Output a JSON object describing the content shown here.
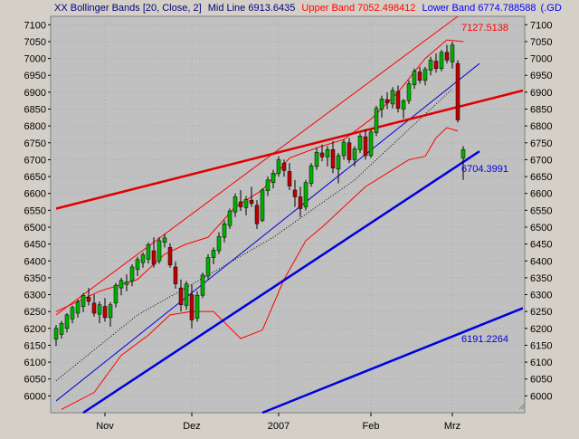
{
  "header": {
    "prefix": "XX Bollinger Bands [20, Close, 2]",
    "mid": "Mid Line 6913.6435",
    "upper": "Upper Band 7052.498412",
    "lower": "Lower Band 6774.788588",
    "tail": "(.GD"
  },
  "chart_data": {
    "type": "candlestick",
    "ylim": [
      5950,
      7125
    ],
    "y_ticks": [
      6000,
      6050,
      6100,
      6150,
      6200,
      6250,
      6300,
      6350,
      6400,
      6450,
      6500,
      6550,
      6600,
      6650,
      6700,
      6750,
      6800,
      6850,
      6900,
      6950,
      7000,
      7050,
      7100
    ],
    "x_labels": [
      "Nov",
      "Dez",
      "2007",
      "Feb",
      "Mrz"
    ],
    "annotations": [
      "7127.5138",
      "6704.3991",
      "6191.2264"
    ],
    "colors": {
      "up": "#00b000",
      "down": "#c00000",
      "band": "#ff0000",
      "trend_red": "#e00000",
      "trend_blue": "#0000dd",
      "background": "#c0c0c0"
    },
    "candles": [
      {
        "o": 6168,
        "h": 6210,
        "l": 6148,
        "c": 6200
      },
      {
        "o": 6182,
        "h": 6222,
        "l": 6170,
        "c": 6215
      },
      {
        "o": 6200,
        "h": 6245,
        "l": 6188,
        "c": 6240
      },
      {
        "o": 6228,
        "h": 6268,
        "l": 6215,
        "c": 6262
      },
      {
        "o": 6245,
        "h": 6285,
        "l": 6232,
        "c": 6278
      },
      {
        "o": 6265,
        "h": 6305,
        "l": 6248,
        "c": 6298
      },
      {
        "o": 6292,
        "h": 6320,
        "l": 6268,
        "c": 6280
      },
      {
        "o": 6275,
        "h": 6300,
        "l": 6235,
        "c": 6245
      },
      {
        "o": 6242,
        "h": 6280,
        "l": 6215,
        "c": 6270
      },
      {
        "o": 6265,
        "h": 6290,
        "l": 6220,
        "c": 6232
      },
      {
        "o": 6232,
        "h": 6278,
        "l": 6205,
        "c": 6270
      },
      {
        "o": 6275,
        "h": 6335,
        "l": 6262,
        "c": 6328
      },
      {
        "o": 6320,
        "h": 6350,
        "l": 6298,
        "c": 6342
      },
      {
        "o": 6330,
        "h": 6360,
        "l": 6310,
        "c": 6338
      },
      {
        "o": 6340,
        "h": 6390,
        "l": 6325,
        "c": 6382
      },
      {
        "o": 6375,
        "h": 6412,
        "l": 6355,
        "c": 6404
      },
      {
        "o": 6395,
        "h": 6425,
        "l": 6380,
        "c": 6418
      },
      {
        "o": 6405,
        "h": 6455,
        "l": 6392,
        "c": 6448
      },
      {
        "o": 6430,
        "h": 6470,
        "l": 6380,
        "c": 6390
      },
      {
        "o": 6400,
        "h": 6470,
        "l": 6392,
        "c": 6460
      },
      {
        "o": 6455,
        "h": 6480,
        "l": 6440,
        "c": 6468
      },
      {
        "o": 6440,
        "h": 6452,
        "l": 6380,
        "c": 6388
      },
      {
        "o": 6382,
        "h": 6398,
        "l": 6318,
        "c": 6332
      },
      {
        "o": 6320,
        "h": 6345,
        "l": 6250,
        "c": 6270
      },
      {
        "o": 6268,
        "h": 6340,
        "l": 6255,
        "c": 6332
      },
      {
        "o": 6300,
        "h": 6330,
        "l": 6200,
        "c": 6225
      },
      {
        "o": 6230,
        "h": 6310,
        "l": 6220,
        "c": 6298
      },
      {
        "o": 6298,
        "h": 6365,
        "l": 6290,
        "c": 6358
      },
      {
        "o": 6355,
        "h": 6420,
        "l": 6345,
        "c": 6410
      },
      {
        "o": 6410,
        "h": 6440,
        "l": 6390,
        "c": 6432
      },
      {
        "o": 6430,
        "h": 6485,
        "l": 6420,
        "c": 6472
      },
      {
        "o": 6470,
        "h": 6520,
        "l": 6455,
        "c": 6510
      },
      {
        "o": 6505,
        "h": 6555,
        "l": 6495,
        "c": 6548
      },
      {
        "o": 6545,
        "h": 6600,
        "l": 6530,
        "c": 6590
      },
      {
        "o": 6575,
        "h": 6610,
        "l": 6548,
        "c": 6560
      },
      {
        "o": 6558,
        "h": 6592,
        "l": 6535,
        "c": 6582
      },
      {
        "o": 6580,
        "h": 6620,
        "l": 6560,
        "c": 6570
      },
      {
        "o": 6565,
        "h": 6580,
        "l": 6495,
        "c": 6510
      },
      {
        "o": 6520,
        "h": 6615,
        "l": 6515,
        "c": 6610
      },
      {
        "o": 6608,
        "h": 6650,
        "l": 6592,
        "c": 6640
      },
      {
        "o": 6632,
        "h": 6670,
        "l": 6615,
        "c": 6660
      },
      {
        "o": 6660,
        "h": 6710,
        "l": 6650,
        "c": 6700
      },
      {
        "o": 6690,
        "h": 6700,
        "l": 6650,
        "c": 6668
      },
      {
        "o": 6665,
        "h": 6690,
        "l": 6610,
        "c": 6622
      },
      {
        "o": 6610,
        "h": 6640,
        "l": 6560,
        "c": 6590
      },
      {
        "o": 6590,
        "h": 6620,
        "l": 6530,
        "c": 6555
      },
      {
        "o": 6560,
        "h": 6640,
        "l": 6550,
        "c": 6632
      },
      {
        "o": 6630,
        "h": 6690,
        "l": 6620,
        "c": 6682
      },
      {
        "o": 6680,
        "h": 6735,
        "l": 6670,
        "c": 6722
      },
      {
        "o": 6720,
        "h": 6745,
        "l": 6695,
        "c": 6708
      },
      {
        "o": 6708,
        "h": 6740,
        "l": 6680,
        "c": 6730
      },
      {
        "o": 6730,
        "h": 6755,
        "l": 6660,
        "c": 6675
      },
      {
        "o": 6672,
        "h": 6720,
        "l": 6630,
        "c": 6712
      },
      {
        "o": 6712,
        "h": 6760,
        "l": 6700,
        "c": 6752
      },
      {
        "o": 6750,
        "h": 6765,
        "l": 6690,
        "c": 6700
      },
      {
        "o": 6700,
        "h": 6740,
        "l": 6680,
        "c": 6732
      },
      {
        "o": 6730,
        "h": 6778,
        "l": 6720,
        "c": 6770
      },
      {
        "o": 6768,
        "h": 6790,
        "l": 6700,
        "c": 6712
      },
      {
        "o": 6712,
        "h": 6790,
        "l": 6705,
        "c": 6782
      },
      {
        "o": 6780,
        "h": 6860,
        "l": 6770,
        "c": 6852
      },
      {
        "o": 6850,
        "h": 6890,
        "l": 6825,
        "c": 6880
      },
      {
        "o": 6878,
        "h": 6900,
        "l": 6850,
        "c": 6868
      },
      {
        "o": 6865,
        "h": 6915,
        "l": 6852,
        "c": 6905
      },
      {
        "o": 6902,
        "h": 6920,
        "l": 6840,
        "c": 6852
      },
      {
        "o": 6850,
        "h": 6880,
        "l": 6822,
        "c": 6875
      },
      {
        "o": 6875,
        "h": 6935,
        "l": 6865,
        "c": 6925
      },
      {
        "o": 6922,
        "h": 6970,
        "l": 6910,
        "c": 6962
      },
      {
        "o": 6960,
        "h": 6975,
        "l": 6925,
        "c": 6935
      },
      {
        "o": 6935,
        "h": 6975,
        "l": 6920,
        "c": 6968
      },
      {
        "o": 6965,
        "h": 7005,
        "l": 6950,
        "c": 6995
      },
      {
        "o": 6992,
        "h": 7015,
        "l": 6958,
        "c": 6970
      },
      {
        "o": 6970,
        "h": 7025,
        "l": 6962,
        "c": 7018
      },
      {
        "o": 7018,
        "h": 7040,
        "l": 6985,
        "c": 6995
      },
      {
        "o": 6990,
        "h": 7050,
        "l": 6970,
        "c": 7040
      },
      {
        "o": 6985,
        "h": 6995,
        "l": 6810,
        "c": 6818
      },
      {
        "o": 6705,
        "h": 6740,
        "l": 6640,
        "c": 6730
      }
    ],
    "upper_band": [
      [
        0,
        6250
      ],
      [
        8,
        6310
      ],
      [
        15,
        6345
      ],
      [
        20,
        6420
      ],
      [
        24,
        6450
      ],
      [
        28,
        6470
      ],
      [
        33,
        6560
      ],
      [
        38,
        6610
      ],
      [
        43,
        6705
      ],
      [
        48,
        6735
      ],
      [
        53,
        6760
      ],
      [
        58,
        6820
      ],
      [
        63,
        6900
      ],
      [
        68,
        7000
      ],
      [
        72,
        7055
      ],
      [
        75,
        7050
      ]
    ],
    "lower_band": [
      [
        1,
        5960
      ],
      [
        7,
        6010
      ],
      [
        12,
        6120
      ],
      [
        17,
        6180
      ],
      [
        21,
        6240
      ],
      [
        25,
        6250
      ],
      [
        29,
        6250
      ],
      [
        34,
        6170
      ],
      [
        38,
        6195
      ],
      [
        42,
        6345
      ],
      [
        46,
        6460
      ],
      [
        49,
        6500
      ],
      [
        52,
        6545
      ],
      [
        57,
        6620
      ],
      [
        61,
        6660
      ],
      [
        65,
        6700
      ],
      [
        68,
        6710
      ],
      [
        70,
        6765
      ],
      [
        72,
        6795
      ],
      [
        74,
        6785
      ]
    ],
    "mid_line": [
      [
        0,
        6045
      ],
      [
        15,
        6240
      ],
      [
        25,
        6330
      ],
      [
        40,
        6470
      ],
      [
        55,
        6640
      ],
      [
        73,
        6910
      ]
    ],
    "trend_lines": [
      {
        "name": "upper-channel",
        "color": "#ff0000",
        "width": 1,
        "p1": [
          0,
          6240
        ],
        "p2": [
          74,
          7125
        ]
      },
      {
        "name": "mid-channel",
        "color": "#0000dd",
        "width": 1,
        "p1": [
          0,
          5985
        ],
        "p2": [
          78,
          6985
        ]
      },
      {
        "name": "resistance",
        "color": "#e00000",
        "width": 2.5,
        "p1": [
          0,
          6555
        ],
        "p2": [
          86,
          6905
        ]
      },
      {
        "name": "support",
        "color": "#0000dd",
        "width": 2.5,
        "p1": [
          5,
          5950
        ],
        "p2": [
          78,
          6725
        ]
      },
      {
        "name": "lower-support",
        "color": "#0000dd",
        "width": 2.5,
        "p1": [
          38,
          5950
        ],
        "p2": [
          86,
          6260
        ]
      }
    ],
    "x_label_index": [
      9,
      25,
      41,
      58,
      73
    ]
  }
}
